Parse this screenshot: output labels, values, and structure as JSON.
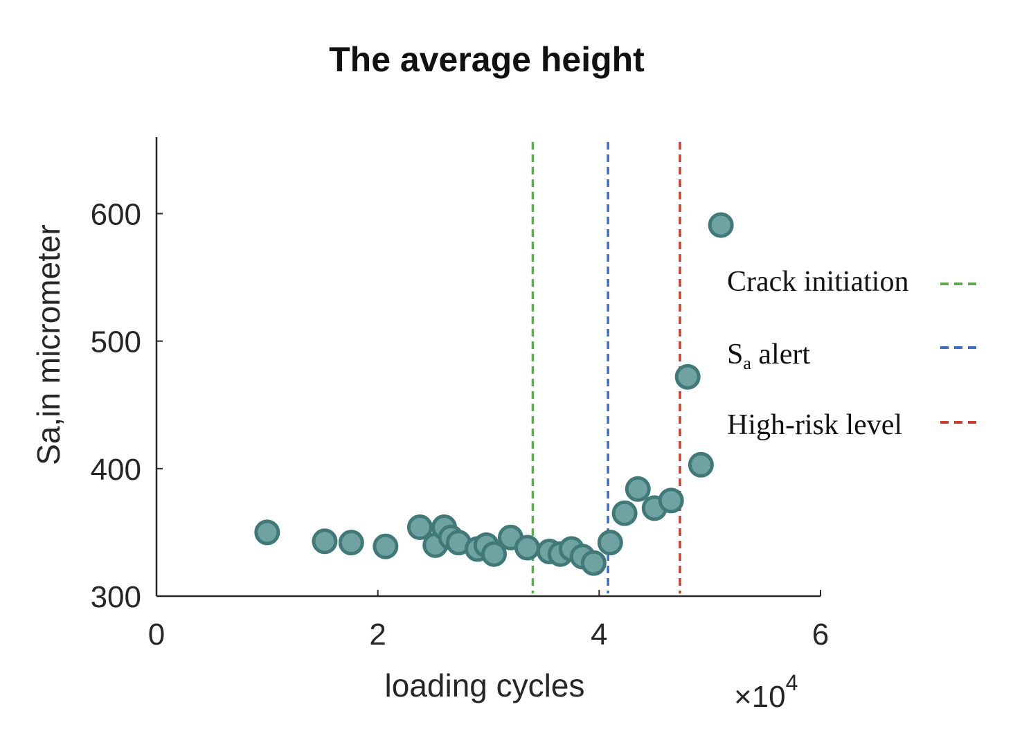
{
  "chart_data": {
    "type": "scatter",
    "title": "The average height",
    "xlabel": "loading cycles",
    "ylabel": "Sa,in micrometer",
    "x_multiplier_label": {
      "prefix": "×10",
      "exponent": "4"
    },
    "xlim": [
      0,
      6
    ],
    "ylim": [
      300,
      660
    ],
    "xticks": [
      0,
      2,
      4,
      6
    ],
    "yticks": [
      300,
      400,
      500,
      600
    ],
    "grid": false,
    "marker_color": "#6fa3a3",
    "marker_edge_color": "#3f7a78",
    "series": [
      {
        "name": "Sa",
        "x": [
          1.0,
          1.52,
          1.76,
          2.07,
          2.38,
          2.52,
          2.6,
          2.66,
          2.73,
          2.9,
          2.98,
          3.05,
          3.2,
          3.35,
          3.55,
          3.65,
          3.75,
          3.85,
          3.95,
          4.1,
          4.23,
          4.35,
          4.5,
          4.65,
          4.8,
          4.92,
          5.1
        ],
        "y": [
          350,
          343,
          342,
          339,
          354,
          340,
          354,
          346,
          342,
          337,
          340,
          333,
          346,
          338,
          335,
          333,
          337,
          331,
          326,
          342,
          365,
          384,
          369,
          375,
          472,
          403,
          591
        ]
      }
    ],
    "vlines": [
      {
        "name": "Crack initiation",
        "x": 3.4,
        "color": "#5aab4a",
        "style": "dashed"
      },
      {
        "name": "alert",
        "x": 4.08,
        "color": "#3b6fc9",
        "style": "dashed"
      },
      {
        "name": "High-risk level",
        "x": 4.73,
        "color": "#d63a2b",
        "style": "dashed"
      }
    ],
    "legend": {
      "placement": "right",
      "entries": [
        {
          "label": "Crack initiation",
          "color": "#5aab4a"
        },
        {
          "label_main": "S",
          "label_sub": "a",
          "label_rest": " alert",
          "color": "#3b6fc9"
        },
        {
          "label": "High-risk level",
          "color": "#d63a2b"
        }
      ]
    }
  }
}
